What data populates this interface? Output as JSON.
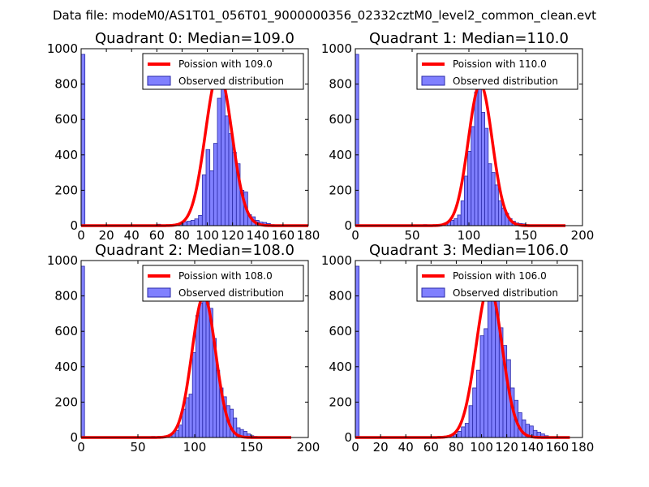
{
  "figure_title": "Data file: modeM0/AS1T01_056T01_9000000356_02332cztM0_level2_common_clean.evt",
  "colors": {
    "fit": "#ff0000",
    "bar_fill": "#8080ff",
    "bar_edge": "#2a2aa8"
  },
  "chart_data": [
    {
      "type": "bar",
      "title": "Quadrant 0: Median=109.0",
      "xlim": [
        0,
        180
      ],
      "ylim": [
        0,
        1000
      ],
      "xticks": [
        0,
        20,
        40,
        60,
        80,
        100,
        120,
        140,
        160,
        180
      ],
      "yticks": [
        0,
        200,
        400,
        600,
        800,
        1000
      ],
      "legend": {
        "position": "top-right",
        "fit_label": "Poission with 109.0",
        "hist_label": "Observed distribution"
      },
      "median": 109,
      "bars": [
        [
          0,
          968
        ],
        [
          60,
          8
        ],
        [
          66,
          5
        ],
        [
          72,
          7
        ],
        [
          75,
          10
        ],
        [
          78,
          14
        ],
        [
          81,
          22
        ],
        [
          84,
          25
        ],
        [
          87,
          30
        ],
        [
          90,
          38
        ],
        [
          93,
          58
        ],
        [
          96,
          287
        ],
        [
          99,
          430
        ],
        [
          102,
          310
        ],
        [
          105,
          465
        ],
        [
          108,
          720
        ],
        [
          111,
          920
        ],
        [
          114,
          620
        ],
        [
          117,
          520
        ],
        [
          120,
          415
        ],
        [
          123,
          350
        ],
        [
          126,
          200
        ],
        [
          129,
          190
        ],
        [
          132,
          62
        ],
        [
          135,
          50
        ],
        [
          138,
          30
        ],
        [
          141,
          20
        ],
        [
          144,
          18
        ],
        [
          147,
          12
        ],
        [
          150,
          6
        ]
      ],
      "bar_width": 3,
      "fit_peak": 870,
      "fit_range": [
        0,
        180
      ]
    },
    {
      "type": "bar",
      "title": "Quadrant 1: Median=110.0",
      "xlim": [
        0,
        200
      ],
      "ylim": [
        0,
        1000
      ],
      "xticks": [
        0,
        50,
        100,
        150,
        200
      ],
      "yticks": [
        0,
        200,
        400,
        600,
        800,
        1000
      ],
      "legend": {
        "position": "top-right",
        "fit_label": "Poission with 110.0",
        "hist_label": "Observed distribution"
      },
      "median": 110,
      "bars": [
        [
          0,
          968
        ],
        [
          60,
          6
        ],
        [
          66,
          5
        ],
        [
          72,
          6
        ],
        [
          75,
          8
        ],
        [
          78,
          15
        ],
        [
          81,
          25
        ],
        [
          84,
          30
        ],
        [
          87,
          40
        ],
        [
          90,
          60
        ],
        [
          93,
          140
        ],
        [
          96,
          280
        ],
        [
          99,
          420
        ],
        [
          102,
          560
        ],
        [
          105,
          755
        ],
        [
          108,
          780
        ],
        [
          111,
          640
        ],
        [
          114,
          550
        ],
        [
          117,
          350
        ],
        [
          120,
          300
        ],
        [
          123,
          230
        ],
        [
          126,
          140
        ],
        [
          129,
          100
        ],
        [
          132,
          70
        ],
        [
          135,
          40
        ],
        [
          138,
          25
        ],
        [
          141,
          15
        ],
        [
          144,
          12
        ],
        [
          147,
          10
        ],
        [
          150,
          6
        ]
      ],
      "bar_width": 3,
      "fit_peak": 800,
      "fit_range": [
        0,
        185
      ]
    },
    {
      "type": "bar",
      "title": "Quadrant 2: Median=108.0",
      "xlim": [
        0,
        200
      ],
      "ylim": [
        0,
        1000
      ],
      "xticks": [
        0,
        50,
        100,
        150,
        200
      ],
      "yticks": [
        0,
        200,
        400,
        600,
        800,
        1000
      ],
      "legend": {
        "position": "top-right",
        "fit_label": "Poission with 108.0",
        "hist_label": "Observed distribution"
      },
      "median": 108,
      "bars": [
        [
          0,
          968
        ],
        [
          62,
          6
        ],
        [
          68,
          6
        ],
        [
          74,
          10
        ],
        [
          77,
          15
        ],
        [
          80,
          20
        ],
        [
          83,
          40
        ],
        [
          86,
          70
        ],
        [
          89,
          160
        ],
        [
          92,
          225
        ],
        [
          95,
          245
        ],
        [
          98,
          480
        ],
        [
          101,
          690
        ],
        [
          104,
          760
        ],
        [
          107,
          790
        ],
        [
          110,
          780
        ],
        [
          113,
          730
        ],
        [
          116,
          560
        ],
        [
          119,
          380
        ],
        [
          122,
          280
        ],
        [
          125,
          230
        ],
        [
          128,
          180
        ],
        [
          131,
          160
        ],
        [
          134,
          110
        ],
        [
          137,
          55
        ],
        [
          140,
          45
        ],
        [
          143,
          35
        ],
        [
          146,
          20
        ],
        [
          149,
          10
        ],
        [
          152,
          6
        ]
      ],
      "bar_width": 3,
      "fit_peak": 800,
      "fit_range": [
        0,
        185
      ]
    },
    {
      "type": "bar",
      "title": "Quadrant 3: Median=106.0",
      "xlim": [
        0,
        180
      ],
      "ylim": [
        0,
        1000
      ],
      "xticks": [
        0,
        20,
        40,
        60,
        80,
        100,
        120,
        140,
        160,
        180
      ],
      "yticks": [
        0,
        200,
        400,
        600,
        800,
        1000
      ],
      "legend": {
        "position": "top-right",
        "fit_label": "Poission with 106.0",
        "hist_label": "Observed distribution"
      },
      "median": 106,
      "bars": [
        [
          0,
          968
        ],
        [
          60,
          5
        ],
        [
          66,
          6
        ],
        [
          72,
          8
        ],
        [
          75,
          12
        ],
        [
          78,
          18
        ],
        [
          81,
          35
        ],
        [
          84,
          60
        ],
        [
          87,
          80
        ],
        [
          90,
          180
        ],
        [
          93,
          280
        ],
        [
          96,
          380
        ],
        [
          99,
          575
        ],
        [
          102,
          615
        ],
        [
          105,
          795
        ],
        [
          108,
          855
        ],
        [
          111,
          840
        ],
        [
          114,
          620
        ],
        [
          117,
          520
        ],
        [
          120,
          440
        ],
        [
          123,
          280
        ],
        [
          126,
          210
        ],
        [
          129,
          140
        ],
        [
          132,
          100
        ],
        [
          135,
          75
        ],
        [
          138,
          65
        ],
        [
          141,
          40
        ],
        [
          144,
          30
        ],
        [
          147,
          20
        ],
        [
          150,
          10
        ]
      ],
      "bar_width": 3,
      "fit_peak": 855,
      "fit_range": [
        0,
        170
      ]
    }
  ]
}
